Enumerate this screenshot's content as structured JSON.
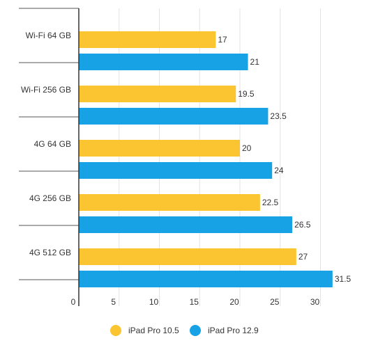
{
  "chart_data": {
    "type": "bar",
    "orientation": "horizontal",
    "title": "",
    "xlabel": "",
    "ylabel": "",
    "categories": [
      "Wi-Fi 64 GB",
      "Wi-Fi 256 GB",
      "4G 64 GB",
      "4G 256 GB",
      "4G 512 GB"
    ],
    "series": [
      {
        "name": "iPad Pro 10.5",
        "color": "#FBC531",
        "values": [
          17,
          19.5,
          20,
          22.5,
          27
        ],
        "value_labels": [
          "17",
          "19.5",
          "20",
          "22.5",
          "27"
        ]
      },
      {
        "name": "iPad Pro 12.9",
        "color": "#17A2E6",
        "values": [
          21,
          23.5,
          24,
          26.5,
          31.5
        ],
        "value_labels": [
          "21",
          "23.5",
          "24",
          "26.5",
          "31.5"
        ]
      }
    ],
    "xlim": [
      0,
      30
    ],
    "xticks": [
      "0",
      "5",
      "10",
      "15",
      "20",
      "25",
      "30"
    ],
    "grid": true,
    "legend_position": "bottom"
  }
}
